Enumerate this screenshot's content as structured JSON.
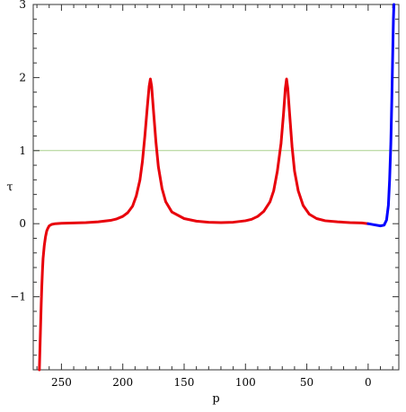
{
  "chart_data": {
    "type": "line",
    "title": "",
    "xlabel": "p",
    "ylabel": "τ",
    "x_reversed": true,
    "xlim": [
      273,
      -25
    ],
    "ylim": [
      -2,
      3
    ],
    "x_ticks": [
      250,
      200,
      150,
      100,
      50,
      0
    ],
    "y_ticks": [
      -1,
      0,
      1,
      2,
      3
    ],
    "y_tick_labels": [
      "−1",
      "0",
      "1",
      "2",
      "3"
    ],
    "reference_line": {
      "y": 1,
      "color": "#a9d18e"
    },
    "series": [
      {
        "color": "#e8000b",
        "points": [
          [
            268,
            -2.0
          ],
          [
            267.5,
            -1.7
          ],
          [
            267,
            -1.4
          ],
          [
            266.5,
            -1.1
          ],
          [
            266,
            -0.85
          ],
          [
            265.5,
            -0.65
          ],
          [
            265,
            -0.48
          ],
          [
            264,
            -0.3
          ],
          [
            263,
            -0.18
          ],
          [
            262,
            -0.1
          ],
          [
            261,
            -0.06
          ],
          [
            260,
            -0.03
          ],
          [
            258,
            -0.01
          ],
          [
            255,
            0.0
          ],
          [
            250,
            0.005
          ],
          [
            240,
            0.01
          ],
          [
            230,
            0.015
          ],
          [
            220,
            0.025
          ],
          [
            210,
            0.045
          ],
          [
            205,
            0.065
          ],
          [
            200,
            0.1
          ],
          [
            196,
            0.15
          ],
          [
            192,
            0.24
          ],
          [
            189,
            0.38
          ],
          [
            186,
            0.6
          ],
          [
            184,
            0.85
          ],
          [
            182,
            1.2
          ],
          [
            180,
            1.6
          ],
          [
            178.5,
            1.88
          ],
          [
            177.5,
            1.98
          ],
          [
            176.5,
            1.88
          ],
          [
            175,
            1.55
          ],
          [
            173,
            1.12
          ],
          [
            171,
            0.78
          ],
          [
            168,
            0.48
          ],
          [
            165,
            0.3
          ],
          [
            160,
            0.16
          ],
          [
            150,
            0.07
          ],
          [
            140,
            0.035
          ],
          [
            130,
            0.02
          ],
          [
            120,
            0.015
          ],
          [
            110,
            0.02
          ],
          [
            100,
            0.04
          ],
          [
            95,
            0.06
          ],
          [
            90,
            0.1
          ],
          [
            85,
            0.17
          ],
          [
            80,
            0.3
          ],
          [
            77,
            0.45
          ],
          [
            74,
            0.72
          ],
          [
            71,
            1.1
          ],
          [
            69,
            1.5
          ],
          [
            67.5,
            1.85
          ],
          [
            66.5,
            1.98
          ],
          [
            65.5,
            1.85
          ],
          [
            64,
            1.5
          ],
          [
            62,
            1.05
          ],
          [
            60,
            0.72
          ],
          [
            57,
            0.45
          ],
          [
            53,
            0.25
          ],
          [
            48,
            0.13
          ],
          [
            42,
            0.07
          ],
          [
            35,
            0.04
          ],
          [
            25,
            0.025
          ],
          [
            15,
            0.015
          ],
          [
            5,
            0.01
          ],
          [
            0,
            0.0
          ]
        ]
      },
      {
        "color": "#0000ff",
        "points": [
          [
            0,
            0.0
          ],
          [
            -5,
            -0.015
          ],
          [
            -10,
            -0.03
          ],
          [
            -13,
            -0.02
          ],
          [
            -15,
            0.05
          ],
          [
            -16.5,
            0.25
          ],
          [
            -17.5,
            0.6
          ],
          [
            -18.5,
            1.1
          ],
          [
            -19.3,
            1.7
          ],
          [
            -20,
            2.3
          ],
          [
            -20.6,
            2.8
          ],
          [
            -21,
            3.0
          ]
        ]
      }
    ]
  }
}
